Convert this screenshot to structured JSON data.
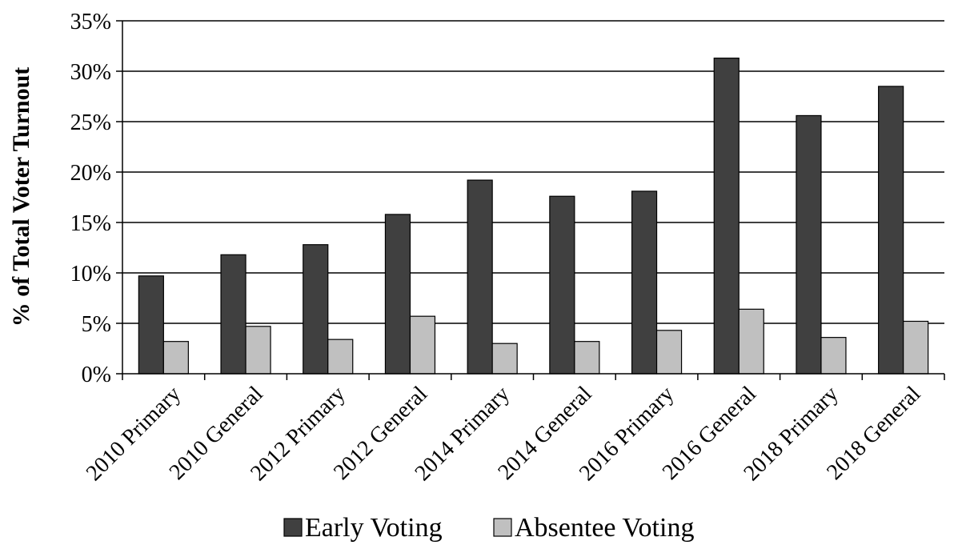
{
  "chart_data": {
    "type": "bar",
    "categories": [
      "2010 Primary",
      "2010 General",
      "2012 Primary",
      "2012 General",
      "2014 Primary",
      "2014 General",
      "2016 Primary",
      "2016 General",
      "2018 Primary",
      "2018 General"
    ],
    "series": [
      {
        "name": "Early Voting",
        "color": "#404040",
        "values": [
          9.7,
          11.8,
          12.8,
          15.8,
          19.2,
          17.6,
          18.1,
          31.3,
          25.6,
          28.5
        ]
      },
      {
        "name": "Absentee Voting",
        "color": "#c0c0c0",
        "values": [
          3.2,
          4.7,
          3.4,
          5.7,
          3.0,
          3.2,
          4.3,
          6.4,
          3.6,
          5.2
        ]
      }
    ],
    "title": "",
    "xlabel": "",
    "ylabel": "% of Total Voter Turnout",
    "ylim": [
      0,
      35
    ],
    "yticks": [
      "0%",
      "5%",
      "10%",
      "15%",
      "20%",
      "25%",
      "30%",
      "35%"
    ],
    "ytick_values": [
      0,
      5,
      10,
      15,
      20,
      25,
      30,
      35
    ],
    "grid": true,
    "legend_position": "bottom"
  }
}
